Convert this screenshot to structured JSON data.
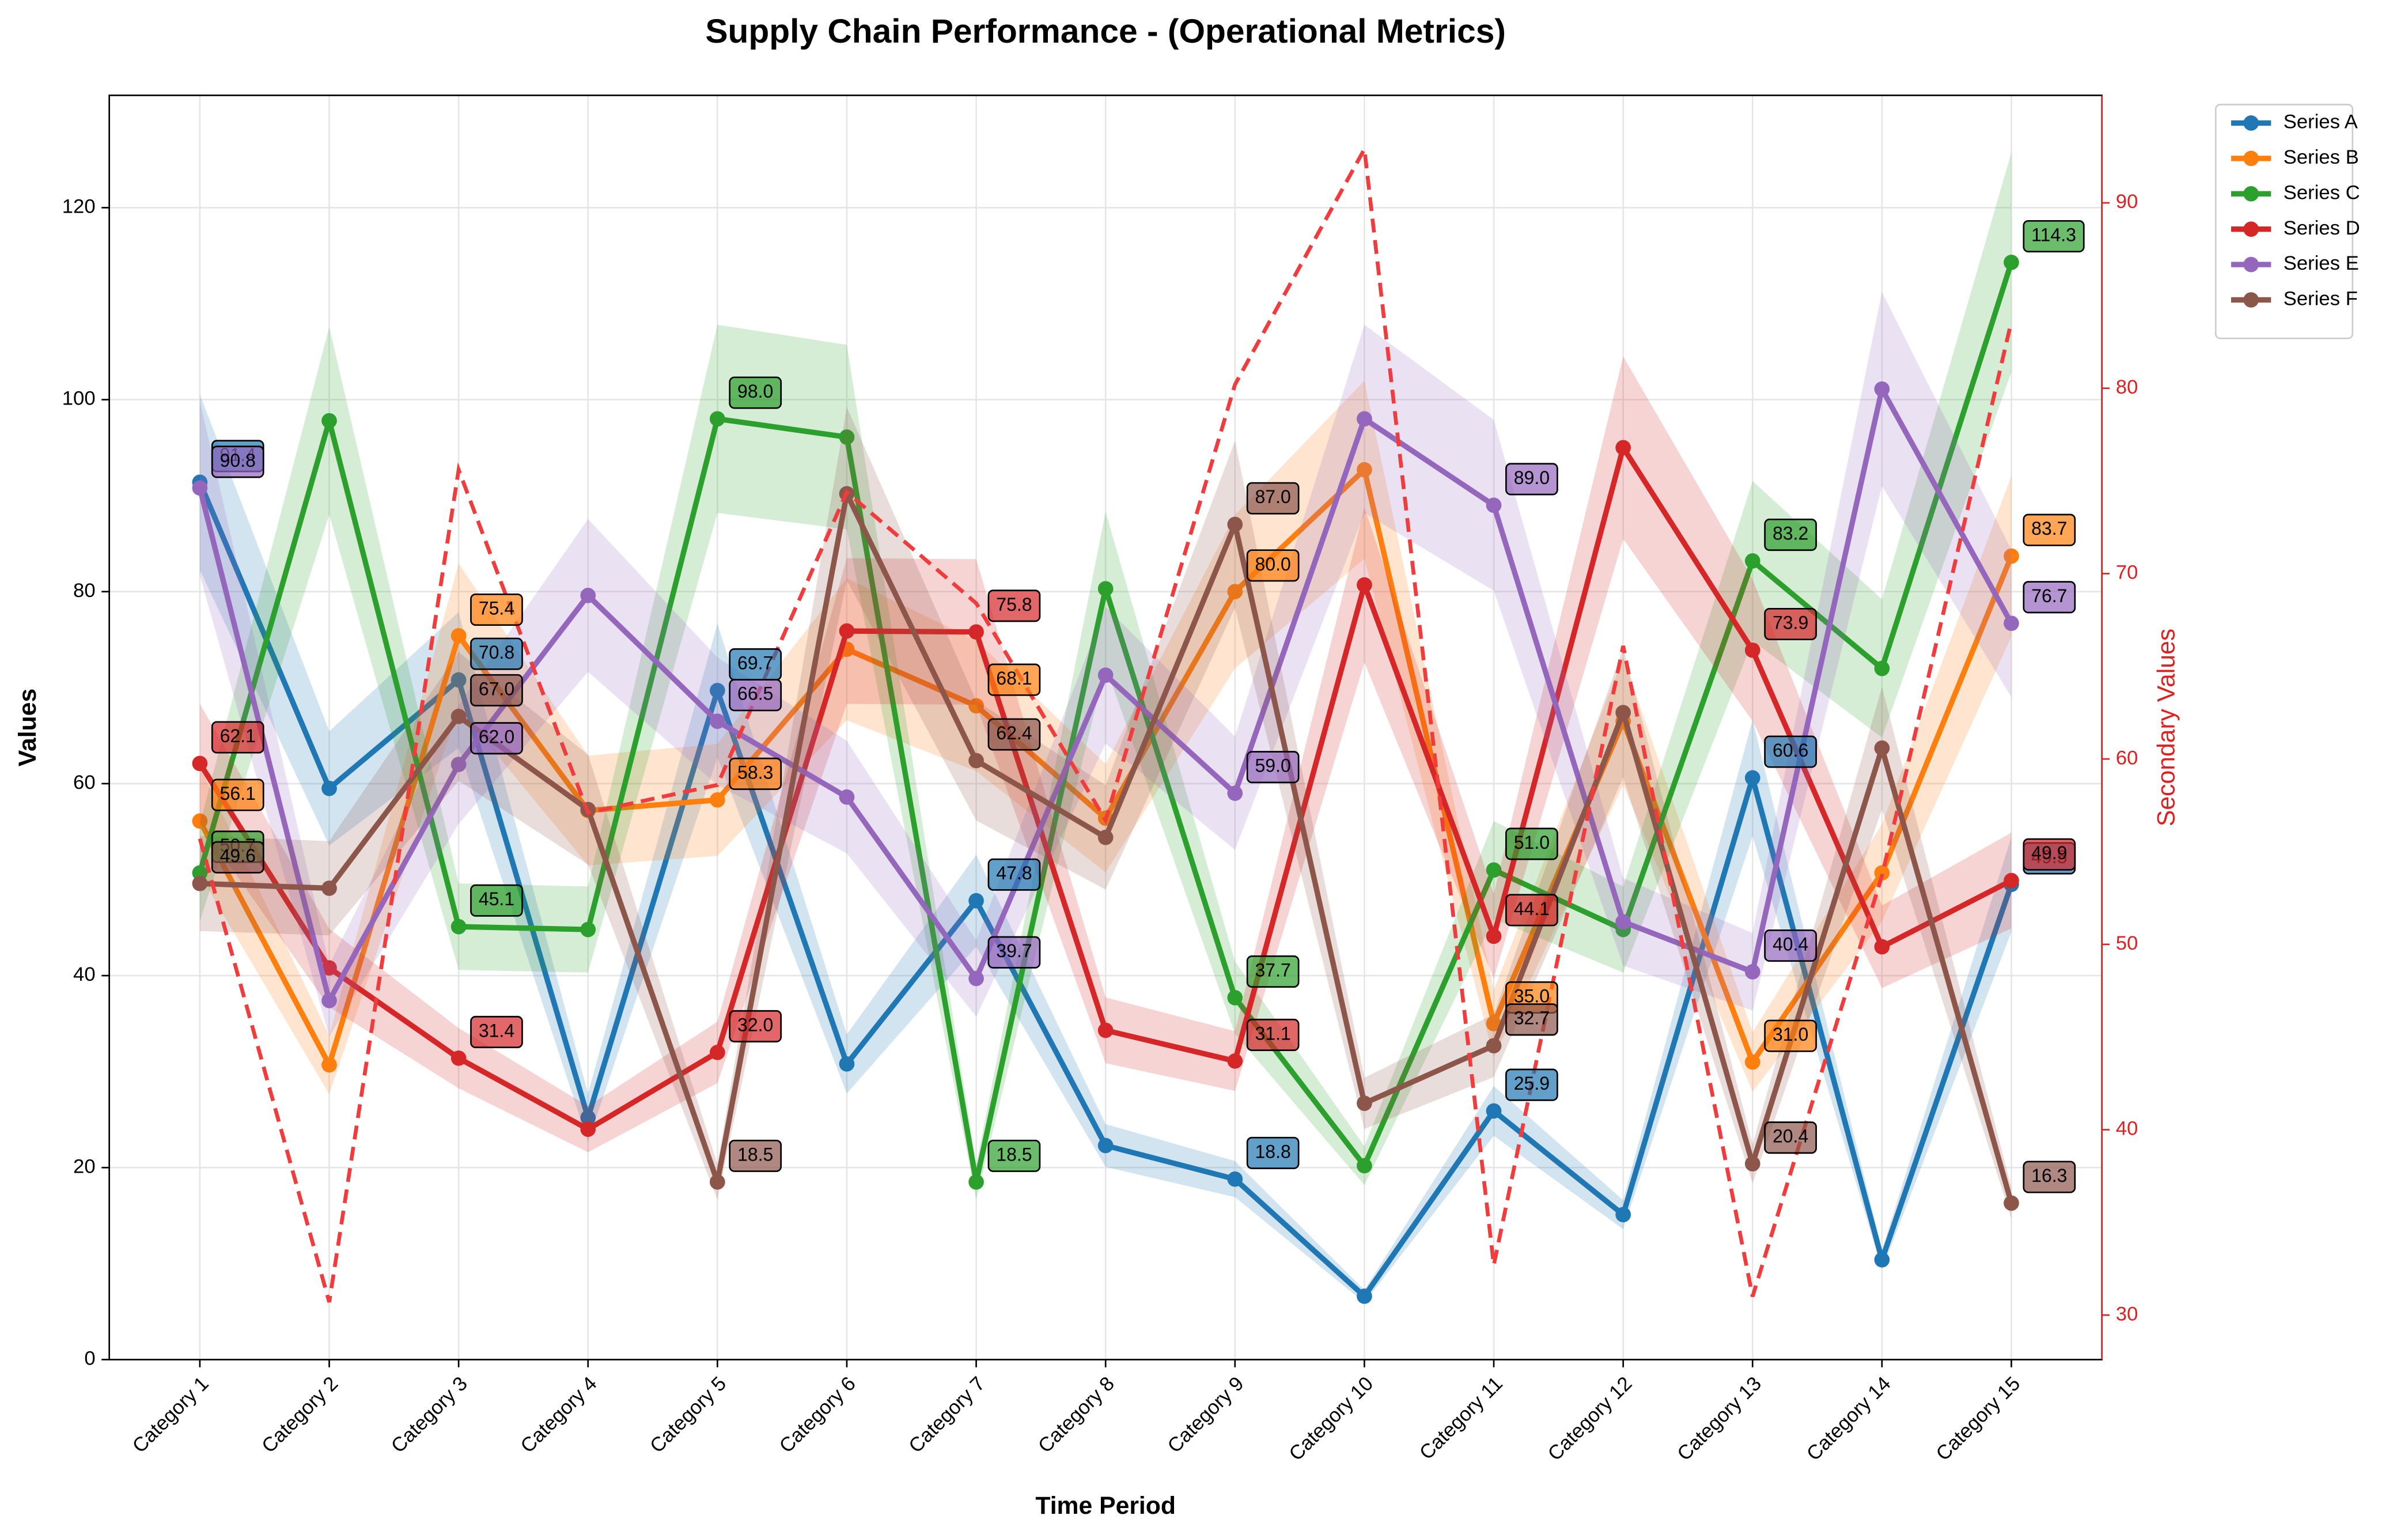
{
  "chart_data": {
    "type": "line",
    "title": "Supply Chain Performance - (Operational Metrics)",
    "xlabel": "Time Period",
    "ylabel": "Values",
    "y2label": "Secondary Values",
    "categories": [
      "Category 1",
      "Category 2",
      "Category 3",
      "Category 4",
      "Category 5",
      "Category 6",
      "Category 7",
      "Category 8",
      "Category 9",
      "Category 10",
      "Category 11",
      "Category 12",
      "Category 13",
      "Category 14",
      "Category 15"
    ],
    "ylim": [
      0,
      131.7
    ],
    "yticks": [
      0,
      20,
      40,
      60,
      80,
      100,
      120
    ],
    "y2lim": [
      27.6,
      95.8
    ],
    "y2ticks": [
      30,
      40,
      50,
      60,
      70,
      80,
      90
    ],
    "grid": true,
    "legend": "outside upper right",
    "band_fraction": 0.1,
    "series": [
      {
        "name": "Series A",
        "color": "#1f77b4",
        "values": [
          91.4,
          59.5,
          70.8,
          25.2,
          69.7,
          30.8,
          47.8,
          22.3,
          18.8,
          6.6,
          25.9,
          15.1,
          60.6,
          10.4,
          49.5
        ],
        "value_labels": [
          "91.4",
          null,
          "70.8",
          null,
          "69.7",
          null,
          "47.8",
          null,
          "18.8",
          null,
          "25.9",
          null,
          "60.6",
          null,
          "49.5"
        ]
      },
      {
        "name": "Series B",
        "color": "#ff7f0e",
        "values": [
          56.1,
          30.7,
          75.4,
          57.2,
          58.3,
          74.0,
          68.1,
          56.4,
          80.0,
          92.7,
          35.0,
          66.5,
          31.0,
          50.7,
          83.7
        ],
        "value_labels": [
          "56.1",
          null,
          "75.4",
          null,
          "58.3",
          null,
          "68.1",
          null,
          "80.0",
          null,
          "35.0",
          null,
          "31.0",
          null,
          "83.7"
        ]
      },
      {
        "name": "Series C",
        "color": "#2ca02c",
        "values": [
          50.7,
          97.8,
          45.1,
          44.8,
          98.0,
          96.1,
          18.5,
          80.3,
          37.7,
          20.2,
          51.0,
          44.8,
          83.2,
          72.0,
          114.3
        ],
        "value_labels": [
          "50.7",
          null,
          "45.1",
          null,
          "98.0",
          null,
          "18.5",
          null,
          "37.7",
          null,
          "51.0",
          null,
          "83.2",
          null,
          "114.3"
        ]
      },
      {
        "name": "Series D",
        "color": "#d62728",
        "values": [
          62.1,
          40.8,
          31.4,
          24.0,
          32.0,
          75.9,
          75.8,
          34.3,
          31.1,
          80.7,
          44.1,
          95.0,
          73.9,
          43.0,
          49.9
        ],
        "value_labels": [
          "62.1",
          null,
          "31.4",
          null,
          "32.0",
          null,
          "75.8",
          null,
          "31.1",
          null,
          "44.1",
          null,
          "73.9",
          null,
          "49.9"
        ]
      },
      {
        "name": "Series E",
        "color": "#9467bd",
        "values": [
          90.8,
          37.4,
          62.0,
          79.6,
          66.5,
          58.6,
          39.7,
          71.3,
          59.0,
          98.0,
          89.0,
          45.6,
          40.4,
          101.1,
          76.7
        ],
        "value_labels": [
          "90.8",
          null,
          "62.0",
          null,
          "66.5",
          null,
          "39.7",
          null,
          "59.0",
          null,
          "89.0",
          null,
          "40.4",
          null,
          "76.7"
        ]
      },
      {
        "name": "Series F",
        "color": "#8c564b",
        "values": [
          49.6,
          49.1,
          67.0,
          57.3,
          18.5,
          90.2,
          62.4,
          54.4,
          87.0,
          26.7,
          32.7,
          67.4,
          20.4,
          63.7,
          16.3
        ],
        "value_labels": [
          "49.6",
          null,
          "67.0",
          null,
          "18.5",
          null,
          "62.4",
          null,
          "87.0",
          null,
          "32.7",
          null,
          "20.4",
          null,
          "16.3"
        ]
      },
      {
        "color": "#f03c3c",
        "axis": "y2",
        "dashed": true,
        "values": [
          55.7,
          30.7,
          75.6,
          57.1,
          58.6,
          74.4,
          68.4,
          56.7,
          80.2,
          92.9,
          32.7,
          66.1,
          31.0,
          53.7,
          83.6
        ]
      }
    ]
  }
}
